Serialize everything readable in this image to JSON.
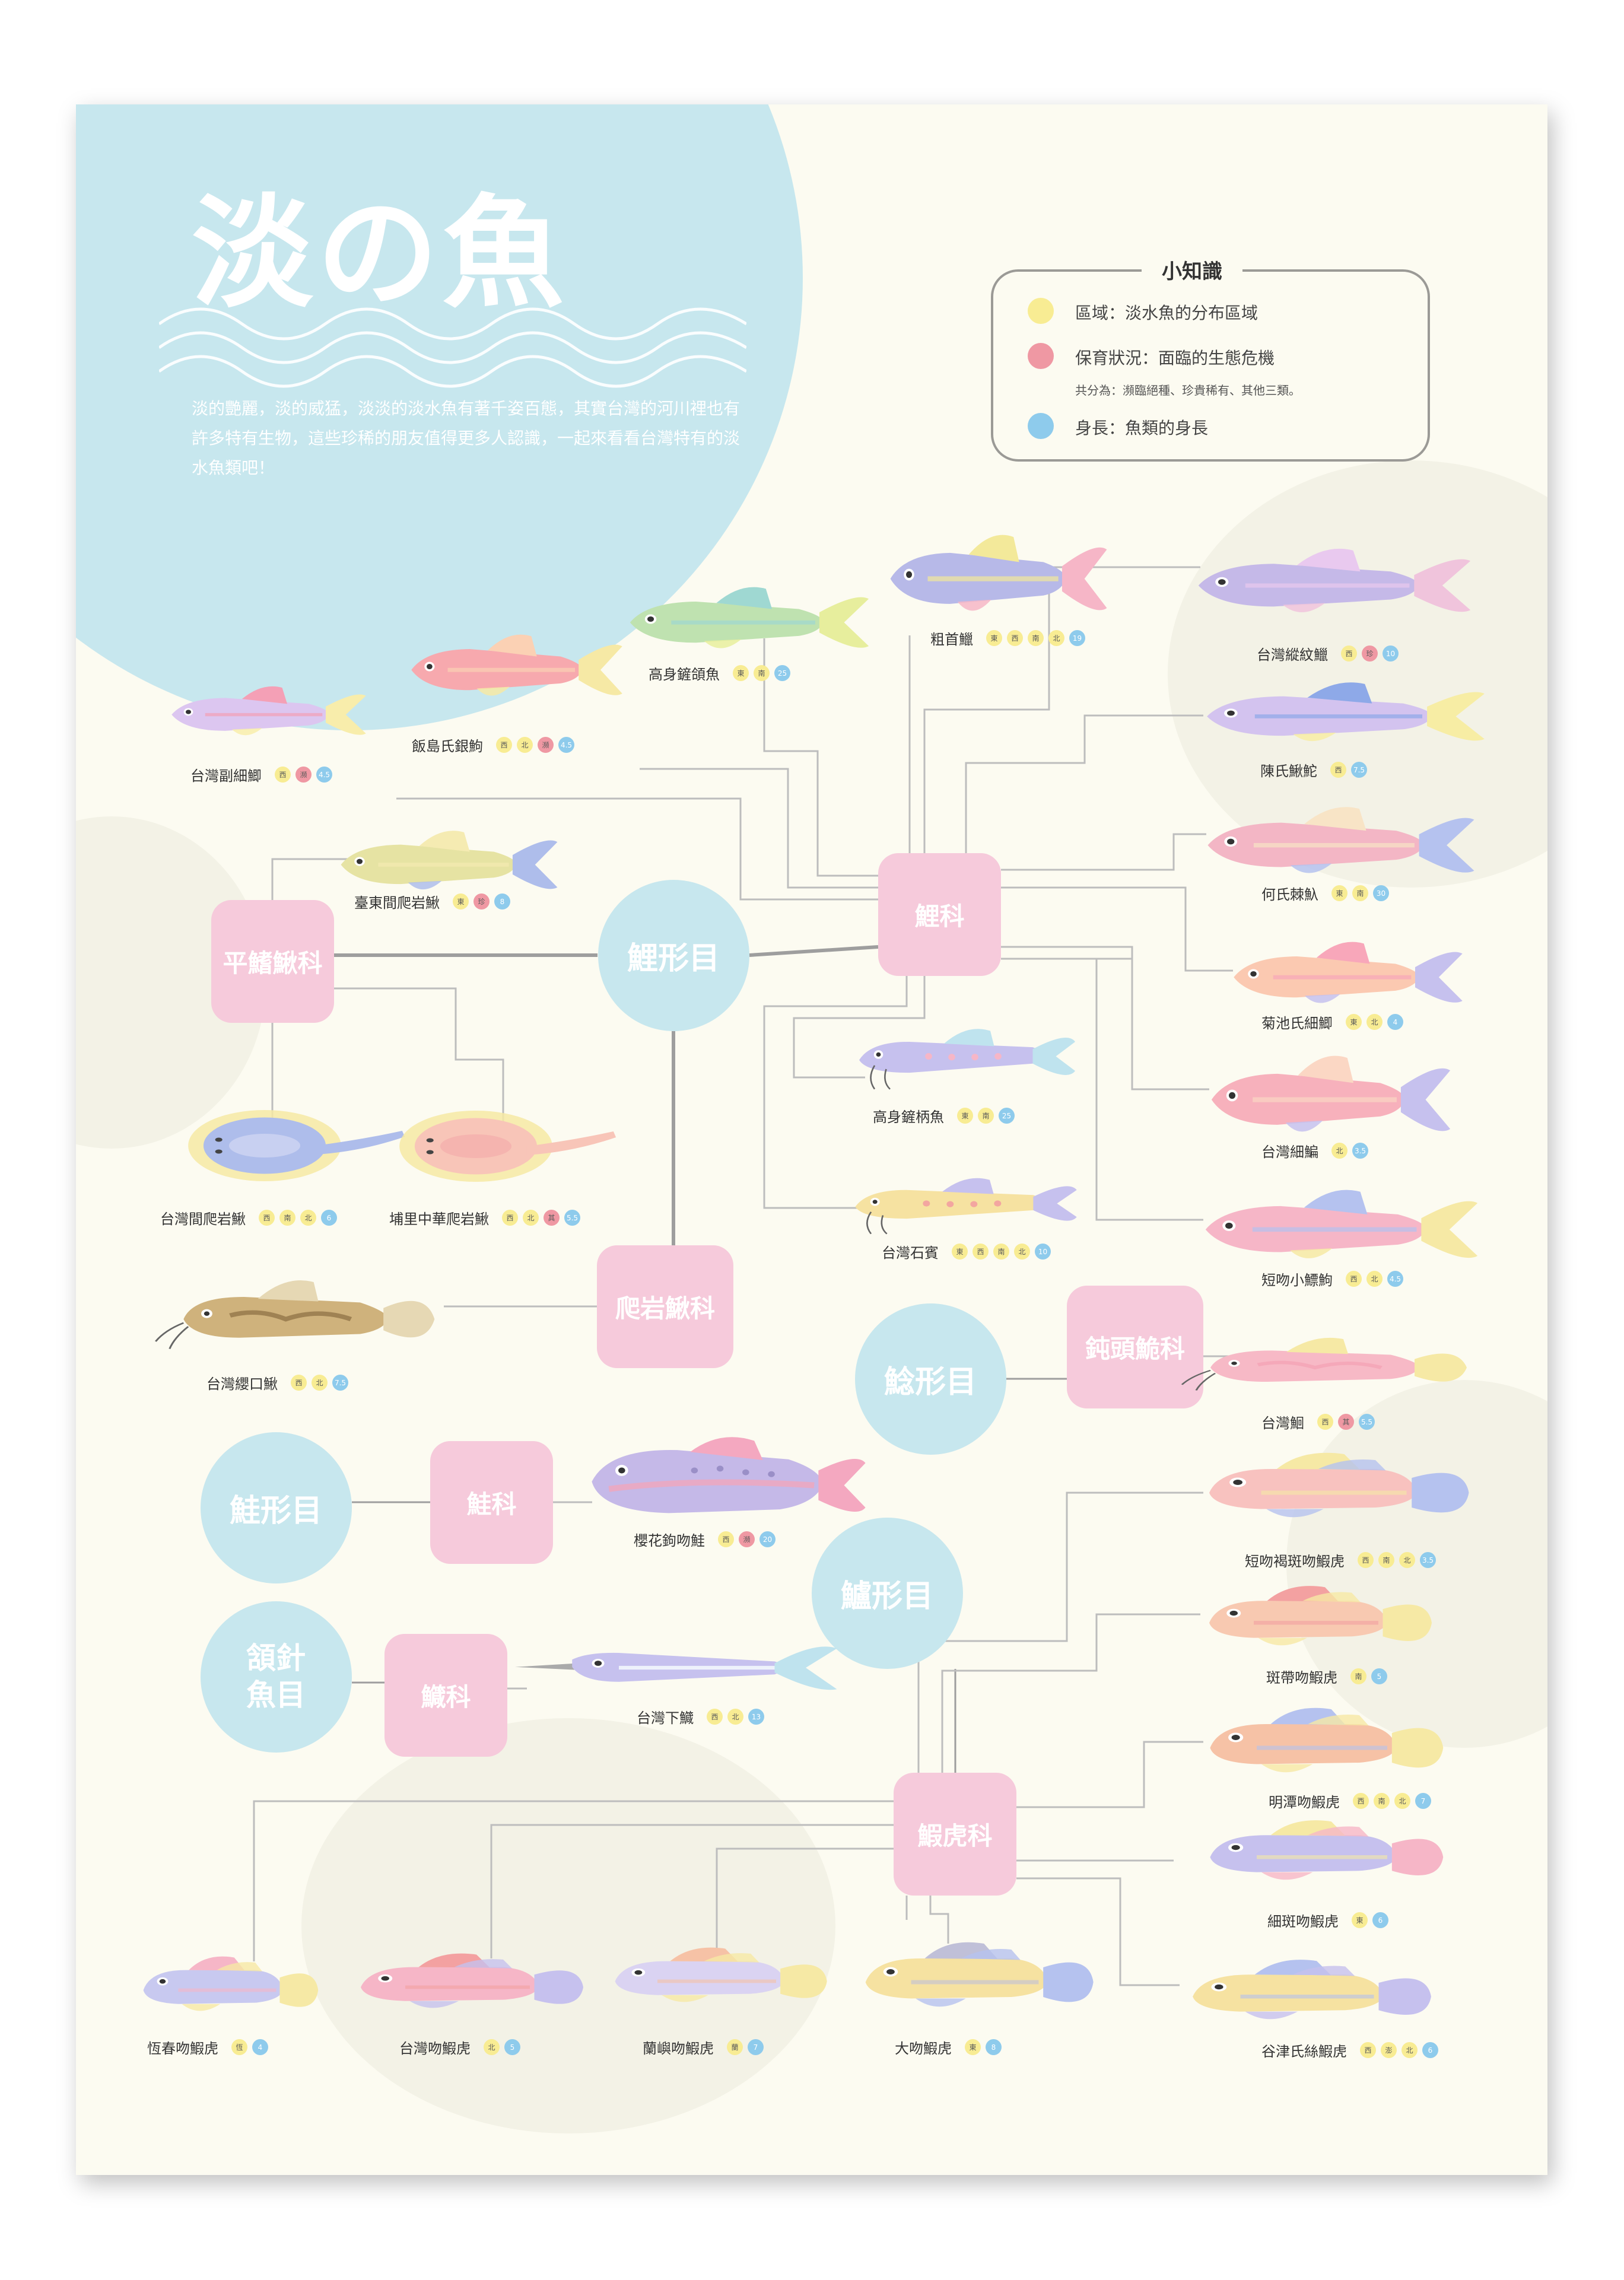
{
  "colors": {
    "region": "#f8ec93",
    "status": "#ef98a3",
    "length": "#8ecbec",
    "order_node": "#c7e7ee",
    "family_node": "#f6cadb",
    "line": "#9e9e9e"
  },
  "header": {
    "title": "淡の魚",
    "intro": "淡的艷麗，淡的威猛，淡淡的淡水魚有著千姿百態，其實台灣的河川裡也有許多特有生物，這些珍稀的朋友值得更多人認識，一起來看看台灣特有的淡水魚類吧！"
  },
  "legend": {
    "title": "小知識",
    "items": [
      {
        "text": "區域：淡水魚的分布區域",
        "color": "#f8ec93"
      },
      {
        "text": "保育狀況：面臨的生態危機",
        "color": "#ef98a3"
      },
      {
        "text": "身長：魚類的身長",
        "color": "#8ecbec"
      }
    ],
    "note": "共分為：瀕臨絕種、珍貴稀有、其他三類。"
  },
  "orders": [
    {
      "label": "鯉形目"
    },
    {
      "label": "鯰形目"
    },
    {
      "label": "鮭形目"
    },
    {
      "label": "頷針魚目"
    },
    {
      "label": "鱸形目"
    }
  ],
  "families": [
    {
      "label": "鯉科"
    },
    {
      "label": "平鰭鰍科"
    },
    {
      "label": "爬岩鰍科"
    },
    {
      "label": "鈍頭鮠科"
    },
    {
      "label": "鮭科"
    },
    {
      "label": "鱵科"
    },
    {
      "label": "鰕虎科"
    }
  ],
  "fish": [
    {
      "name": "粗首鱲",
      "region": [
        "東",
        "西",
        "南",
        "北"
      ],
      "status": [],
      "length": "19",
      "icon": "zacco-fish-icon",
      "body": "#b7b9e8",
      "fin": "#f6b6c7",
      "accent": "#f3e99a",
      "shape": "minnow"
    },
    {
      "name": "台灣縱紋鱲",
      "region": [
        "西"
      ],
      "status": [
        "珍"
      ],
      "length": "10",
      "icon": "striped-minnow-fish-icon",
      "body": "#c5b9e8",
      "fin": "#f0c4dc",
      "accent": "#e9c9ef",
      "shape": "minnow"
    },
    {
      "name": "高身鏟頜魚",
      "region": [
        "東",
        "南"
      ],
      "status": [],
      "length": "25",
      "icon": "onychostoma-fish-icon",
      "body": "#bfe2b0",
      "fin": "#e7ee9d",
      "accent": "#9fd8d2",
      "shape": "minnow"
    },
    {
      "name": "陳氏鰍鮀",
      "region": [
        "西"
      ],
      "status": [],
      "length": "7.5",
      "icon": "gudgeon-fish-icon",
      "body": "#d3c3ef",
      "fin": "#f7eda4",
      "accent": "#8ea9e8",
      "shape": "minnow"
    },
    {
      "name": "飯島氏銀鮈",
      "region": [
        "西",
        "北"
      ],
      "status": [
        "瀕"
      ],
      "length": "4.5",
      "icon": "squalidus-fish-icon",
      "body": "#f7a9ae",
      "fin": "#f6e9a5",
      "accent": "#fbd1b4",
      "shape": "minnow"
    },
    {
      "name": "台灣副細鯽",
      "region": [
        "西"
      ],
      "status": [
        "瀕"
      ],
      "length": "4.5",
      "icon": "rasbora-fish-icon",
      "body": "#dcc6f0",
      "fin": "#f8edab",
      "accent": "#f4a0b6",
      "shape": "minnow"
    },
    {
      "name": "何氏棘魞",
      "region": [
        "東",
        "南"
      ],
      "status": [],
      "length": "30",
      "icon": "spinibarbus-fish-icon",
      "body": "#f3b6c5",
      "fin": "#b5c2ef",
      "accent": "#f8e4c6",
      "shape": "minnow"
    },
    {
      "name": "臺東間爬岩鰍",
      "region": [
        "東"
      ],
      "status": [
        "珍"
      ],
      "length": "8",
      "icon": "loach-fish-icon",
      "body": "#e6e3a3",
      "fin": "#aebdeb",
      "accent": "#f5ebb2",
      "shape": "minnow"
    },
    {
      "name": "菊池氏細鯽",
      "region": [
        "東",
        "北"
      ],
      "status": [],
      "length": "4",
      "icon": "kikuchi-minnow-fish-icon",
      "body": "#fbc9b1",
      "fin": "#c6c1ee",
      "accent": "#f8a7ba",
      "shape": "minnow"
    },
    {
      "name": "高身鏟柄魚",
      "region": [
        "東",
        "南"
      ],
      "status": [],
      "length": "25",
      "icon": "ladle-fish-icon",
      "body": "#c6c1ee",
      "fin": "#bfe3ee",
      "accent": "#f6b6c7",
      "shape": "loach"
    },
    {
      "name": "台灣細鯿",
      "region": [
        "北"
      ],
      "status": [],
      "length": "3.5",
      "icon": "bream-fish-icon",
      "body": "#f7b1bc",
      "fin": "#c6c1ee",
      "accent": "#fbd7c4",
      "shape": "minnow"
    },
    {
      "name": "台灣間爬岩鰍",
      "region": [
        "西",
        "南",
        "北"
      ],
      "status": [],
      "length": "6",
      "icon": "hillstream-loach-fish-icon",
      "body": "#aebdeb",
      "fin": "#f6e9a5",
      "accent": "#d8dcf5",
      "shape": "ray"
    },
    {
      "name": "埔里中華爬岩鰍",
      "region": [
        "西",
        "北"
      ],
      "status": [
        "其"
      ],
      "length": "5.5",
      "icon": "puli-loach-fish-icon",
      "body": "#f8c5b8",
      "fin": "#f6e9a5",
      "accent": "#f4a9a9",
      "shape": "ray"
    },
    {
      "name": "台灣石賓",
      "region": [
        "東",
        "西",
        "南",
        "北"
      ],
      "status": [],
      "length": "10",
      "icon": "stone-loach-fish-icon",
      "body": "#f6e2a1",
      "fin": "#c6c1ee",
      "accent": "#f3a6a0",
      "shape": "loach"
    },
    {
      "name": "短吻小鰾鮈",
      "region": [
        "西",
        "北"
      ],
      "status": [],
      "length": "4.5",
      "icon": "microphysogobio-fish-icon",
      "body": "#f6b6c7",
      "fin": "#f6e9a5",
      "accent": "#b5c2ef",
      "shape": "minnow"
    },
    {
      "name": "台灣纓口鰍",
      "region": [
        "西",
        "北"
      ],
      "status": [],
      "length": "7.5",
      "icon": "crossostoma-fish-icon",
      "body": "#cfb27c",
      "fin": "#e6d8b4",
      "accent": "#8a6d41",
      "shape": "catfish"
    },
    {
      "name": "台灣鮰",
      "region": [
        "西"
      ],
      "status": [
        "其"
      ],
      "length": "5.5",
      "icon": "liobagrus-fish-icon",
      "body": "#f7b9c6",
      "fin": "#f6e9a5",
      "accent": "#f3a1b3",
      "shape": "catfish"
    },
    {
      "name": "櫻花鉤吻鮭",
      "region": [
        "西"
      ],
      "status": [
        "瀕"
      ],
      "length": "20",
      "icon": "formosan-salmon-fish-icon",
      "body": "#c5b9e8",
      "fin": "#f4a8c0",
      "accent": "#f7a4b6",
      "shape": "salmon"
    },
    {
      "name": "短吻褐斑吻鰕虎",
      "region": [
        "西",
        "南",
        "北"
      ],
      "status": [],
      "length": "3.5",
      "icon": "brown-goby-fish-icon",
      "body": "#f8c2bf",
      "fin": "#b5c2ef",
      "accent": "#f6e9a5",
      "shape": "goby"
    },
    {
      "name": "斑帶吻鰕虎",
      "region": [
        "南"
      ],
      "status": [],
      "length": "5",
      "icon": "banded-goby-fish-icon",
      "body": "#f8c9b1",
      "fin": "#f6e9a5",
      "accent": "#f3a1a1",
      "shape": "goby"
    },
    {
      "name": "台灣下鱵",
      "region": [
        "西",
        "北"
      ],
      "status": [],
      "length": "13",
      "icon": "halfbeak-fish-icon",
      "body": "#c6c1ee",
      "fin": "#bfe3ee",
      "accent": "#eef2fb",
      "shape": "halfbeak"
    },
    {
      "name": "明潭吻鰕虎",
      "region": [
        "西",
        "南",
        "北"
      ],
      "status": [],
      "length": "7",
      "icon": "mingtan-goby-fish-icon",
      "body": "#f6c2a6",
      "fin": "#f6e9a5",
      "accent": "#b5c2ef",
      "shape": "goby"
    },
    {
      "name": "細斑吻鰕虎",
      "region": [
        "東"
      ],
      "status": [],
      "length": "6",
      "icon": "spotted-goby-fish-icon",
      "body": "#c6c1ee",
      "fin": "#f6b6c7",
      "accent": "#f6e9a5",
      "shape": "goby"
    },
    {
      "name": "恆春吻鰕虎",
      "region": [
        "恆"
      ],
      "status": [],
      "length": "4",
      "icon": "hengchun-goby-fish-icon",
      "body": "#c8c9f0",
      "fin": "#f6e9a5",
      "accent": "#f6b6c7",
      "shape": "goby"
    },
    {
      "name": "台灣吻鰕虎",
      "region": [
        "北"
      ],
      "status": [],
      "length": "5",
      "icon": "taiwan-goby-fish-icon",
      "body": "#f6b6c7",
      "fin": "#c6c1ee",
      "accent": "#f3a1a1",
      "shape": "goby"
    },
    {
      "name": "蘭嶼吻鰕虎",
      "region": [
        "蘭"
      ],
      "status": [],
      "length": "7",
      "icon": "lanyu-goby-fish-icon",
      "body": "#dad3f2",
      "fin": "#f6e9a5",
      "accent": "#f6c2a6",
      "shape": "goby"
    },
    {
      "name": "大吻鰕虎",
      "region": [
        "東"
      ],
      "status": [],
      "length": "8",
      "icon": "large-snout-goby-fish-icon",
      "body": "#f6e2a1",
      "fin": "#b5c2ef",
      "accent": "#c0c0d8",
      "shape": "goby"
    },
    {
      "name": "谷津氏絲鰕虎",
      "region": [
        "西",
        "澎",
        "北"
      ],
      "status": [],
      "length": "6",
      "icon": "yatsu-goby-fish-icon",
      "body": "#f6e2a1",
      "fin": "#c6c1ee",
      "accent": "#b5c2ef",
      "shape": "goby"
    }
  ]
}
